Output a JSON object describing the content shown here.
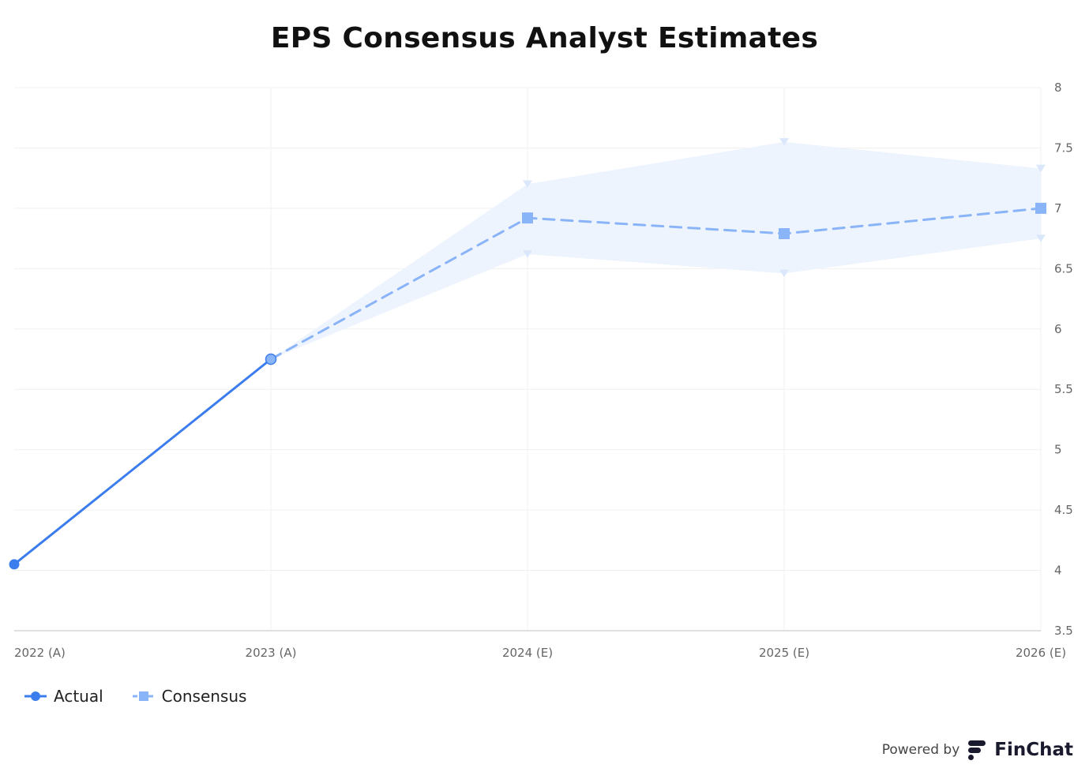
{
  "chart_data": {
    "type": "line",
    "title": "EPS Consensus Analyst Estimates",
    "categories": [
      "2022 (A)",
      "2023 (A)",
      "2024 (E)",
      "2025 (E)",
      "2026 (E)"
    ],
    "ylim": [
      3.5,
      8
    ],
    "yticks": [
      3.5,
      4,
      4.5,
      5,
      5.5,
      6,
      6.5,
      7,
      7.5,
      8
    ],
    "y_axis_position": "right",
    "grid": true,
    "legend_position": "bottom-left",
    "series": [
      {
        "name": "Actual",
        "values": [
          4.05,
          5.75,
          null,
          null,
          null
        ],
        "color": "#3b7ded",
        "style": "solid",
        "marker": "circle"
      },
      {
        "name": "Consensus",
        "values": [
          null,
          5.75,
          6.92,
          6.79,
          7.0
        ],
        "color": "#8ab4f8",
        "style": "dashed",
        "marker": "square"
      }
    ],
    "range": {
      "high": [
        null,
        5.75,
        7.2,
        7.55,
        7.33
      ],
      "low": [
        null,
        5.75,
        6.62,
        6.46,
        6.75
      ],
      "color": "#eef4fd"
    }
  },
  "legend": {
    "actual_label": "Actual",
    "consensus_label": "Consensus"
  },
  "footer": {
    "powered_by": "Powered by",
    "brand": "FinChat"
  }
}
